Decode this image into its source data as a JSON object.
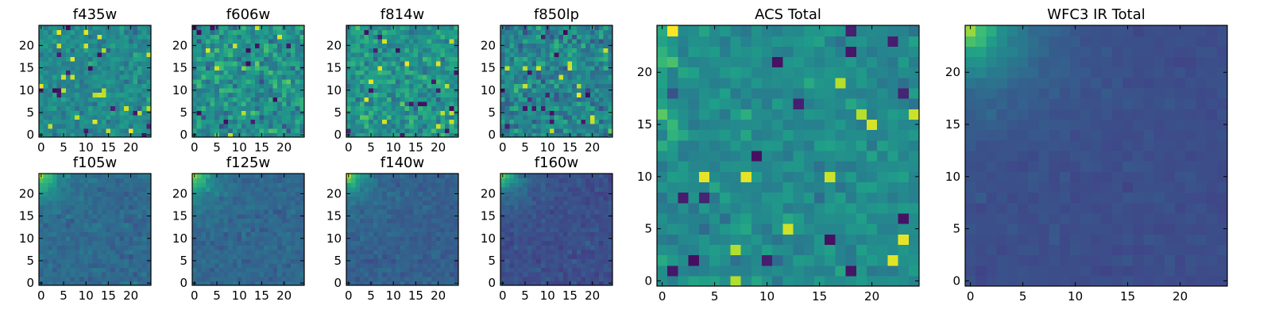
{
  "chart_data": [
    {
      "type": "heatmap",
      "title": "f435w",
      "xticks": [
        "0",
        "5",
        "10",
        "15",
        "20"
      ],
      "yticks": [
        "0",
        "5",
        "10",
        "15",
        "20"
      ],
      "xlim": [
        -0.5,
        24.5
      ],
      "ylim": [
        -0.5,
        24.5
      ],
      "colormap": "viridis",
      "grid_size": [
        25,
        25
      ],
      "z_pattern": "noise",
      "z_mean": 0.47,
      "z_spread": 0.13
    },
    {
      "type": "heatmap",
      "title": "f606w",
      "xticks": [
        "0",
        "5",
        "10",
        "15",
        "20"
      ],
      "yticks": [
        "0",
        "5",
        "10",
        "15",
        "20"
      ],
      "xlim": [
        -0.5,
        24.5
      ],
      "ylim": [
        -0.5,
        24.5
      ],
      "colormap": "viridis",
      "grid_size": [
        25,
        25
      ],
      "z_pattern": "noise",
      "z_mean": 0.5,
      "z_spread": 0.2
    },
    {
      "type": "heatmap",
      "title": "f814w",
      "xticks": [
        "0",
        "5",
        "10",
        "15",
        "20"
      ],
      "yticks": [
        "0",
        "5",
        "10",
        "15",
        "20"
      ],
      "xlim": [
        -0.5,
        24.5
      ],
      "ylim": [
        -0.5,
        24.5
      ],
      "colormap": "viridis",
      "grid_size": [
        25,
        25
      ],
      "z_pattern": "noise",
      "z_mean": 0.52,
      "z_spread": 0.17
    },
    {
      "type": "heatmap",
      "title": "f850lp",
      "xticks": [
        "0",
        "5",
        "10",
        "15",
        "20"
      ],
      "yticks": [
        "0",
        "5",
        "10",
        "15",
        "20"
      ],
      "xlim": [
        -0.5,
        24.5
      ],
      "ylim": [
        -0.5,
        24.5
      ],
      "colormap": "viridis",
      "grid_size": [
        25,
        25
      ],
      "z_pattern": "noise",
      "z_mean": 0.46,
      "z_spread": 0.2
    },
    {
      "type": "heatmap",
      "title": "f105w",
      "xticks": [
        "0",
        "5",
        "10",
        "15",
        "20"
      ],
      "yticks": [
        "0",
        "5",
        "10",
        "15",
        "20"
      ],
      "xlim": [
        -0.5,
        24.5
      ],
      "ylim": [
        -0.5,
        24.5
      ],
      "colormap": "viridis",
      "grid_size": [
        25,
        25
      ],
      "z_pattern": "gradient-top-left",
      "z_mean": 0.34,
      "z_spread": 0.07
    },
    {
      "type": "heatmap",
      "title": "f125w",
      "xticks": [
        "0",
        "5",
        "10",
        "15",
        "20"
      ],
      "yticks": [
        "0",
        "5",
        "10",
        "15",
        "20"
      ],
      "xlim": [
        -0.5,
        24.5
      ],
      "ylim": [
        -0.5,
        24.5
      ],
      "colormap": "viridis",
      "grid_size": [
        25,
        25
      ],
      "z_pattern": "gradient-top-left",
      "z_mean": 0.33,
      "z_spread": 0.07
    },
    {
      "type": "heatmap",
      "title": "f140w",
      "xticks": [
        "0",
        "5",
        "10",
        "15",
        "20"
      ],
      "yticks": [
        "0",
        "5",
        "10",
        "15",
        "20"
      ],
      "xlim": [
        -0.5,
        24.5
      ],
      "ylim": [
        -0.5,
        24.5
      ],
      "colormap": "viridis",
      "grid_size": [
        25,
        25
      ],
      "z_pattern": "gradient-top-left",
      "z_mean": 0.3,
      "z_spread": 0.06
    },
    {
      "type": "heatmap",
      "title": "f160w",
      "xticks": [
        "0",
        "5",
        "10",
        "15",
        "20"
      ],
      "yticks": [
        "0",
        "5",
        "10",
        "15",
        "20"
      ],
      "xlim": [
        -0.5,
        24.5
      ],
      "ylim": [
        -0.5,
        24.5
      ],
      "colormap": "viridis",
      "grid_size": [
        25,
        25
      ],
      "z_pattern": "gradient-top-left",
      "z_mean": 0.24,
      "z_spread": 0.06
    },
    {
      "type": "heatmap",
      "title": "ACS Total",
      "xticks": [
        "0",
        "5",
        "10",
        "15",
        "20"
      ],
      "yticks": [
        "0",
        "5",
        "10",
        "15",
        "20"
      ],
      "xlim": [
        -0.5,
        24.5
      ],
      "ylim": [
        -0.5,
        24.5
      ],
      "colormap": "viridis",
      "grid_size": [
        25,
        25
      ],
      "z_pattern": "noise",
      "z_mean": 0.48,
      "z_spread": 0.1
    },
    {
      "type": "heatmap",
      "title": "WFC3 IR Total",
      "xticks": [
        "0",
        "5",
        "10",
        "15",
        "20"
      ],
      "yticks": [
        "0",
        "5",
        "10",
        "15",
        "20"
      ],
      "xlim": [
        -0.5,
        24.5
      ],
      "ylim": [
        -0.5,
        24.5
      ],
      "colormap": "viridis",
      "grid_size": [
        25,
        25
      ],
      "z_pattern": "gradient-top-left",
      "z_mean": 0.24,
      "z_spread": 0.035
    }
  ],
  "colors": {
    "axes": "#000000",
    "background": "#ffffff"
  }
}
